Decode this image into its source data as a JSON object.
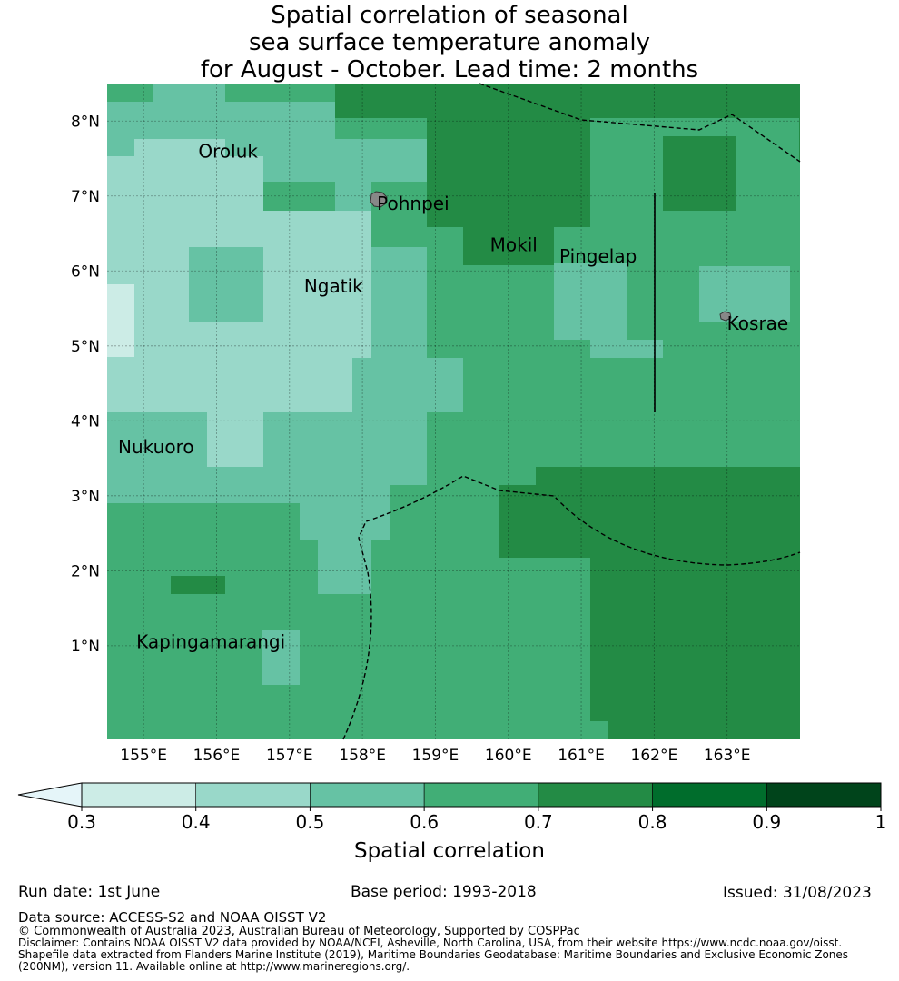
{
  "title": {
    "line1": "Spatial correlation of seasonal",
    "line2": "sea surface temperature anomaly",
    "line3": "for August - October. Lead time: 2 months"
  },
  "map": {
    "lon_range": [
      154.5,
      164.0
    ],
    "lat_range": [
      -0.25,
      8.5
    ],
    "x_ticks": [
      "155°E",
      "156°E",
      "157°E",
      "158°E",
      "159°E",
      "160°E",
      "161°E",
      "162°E",
      "163°E"
    ],
    "y_ticks": [
      "8°N",
      "7°N",
      "6°N",
      "5°N",
      "4°N",
      "3°N",
      "2°N",
      "1°N"
    ],
    "grid": true,
    "places": [
      {
        "name": "Oroluk",
        "lon": 155.75,
        "lat": 7.6
      },
      {
        "name": "Pohnpei",
        "lon": 158.2,
        "lat": 6.9
      },
      {
        "name": "Mokil",
        "lon": 159.75,
        "lat": 6.35
      },
      {
        "name": "Pingelap",
        "lon": 160.7,
        "lat": 6.2
      },
      {
        "name": "Ngatik",
        "lon": 157.2,
        "lat": 5.8
      },
      {
        "name": "Kosrae",
        "lon": 163.0,
        "lat": 5.3
      },
      {
        "name": "Nukuoro",
        "lon": 154.65,
        "lat": 3.65
      },
      {
        "name": "Kapingamarangi",
        "lon": 154.9,
        "lat": 1.05
      }
    ]
  },
  "colorbar": {
    "ticks": [
      "0.3",
      "0.4",
      "0.5",
      "0.6",
      "0.7",
      "0.8",
      "0.9",
      "1"
    ],
    "colors": [
      "#ccece6",
      "#99d8c9",
      "#66c2a4",
      "#41ae76",
      "#238b45",
      "#006d2c",
      "#00441b"
    ],
    "extend_color": "#e5f5f9",
    "label": "Spatial correlation"
  },
  "footer": {
    "run_date": "Run date: 1st June",
    "base_period": "Base period: 1993-2018",
    "issued": "Issued: 31/08/2023",
    "data_source": "Data source: ACCESS-S2 and NOAA OISST V2",
    "copyright": "© Commonwealth of Australia 2023, Australian Bureau of Meteorology, Supported by COSPPac",
    "disclaimer1": "Disclaimer: Contains NOAA OISST V2 data provided by NOAA/NCEI, Asheville, North Carolina, USA, from their website https://www.ncdc.noaa.gov/oisst.",
    "disclaimer2": "Shapefile data extracted from Flanders Marine Institute (2019), Maritime Boundaries Geodatabase: Maritime Boundaries and Exclusive Economic Zones",
    "disclaimer3": "(200NM), version 11. Available online at http://www.marineregions.org/."
  }
}
